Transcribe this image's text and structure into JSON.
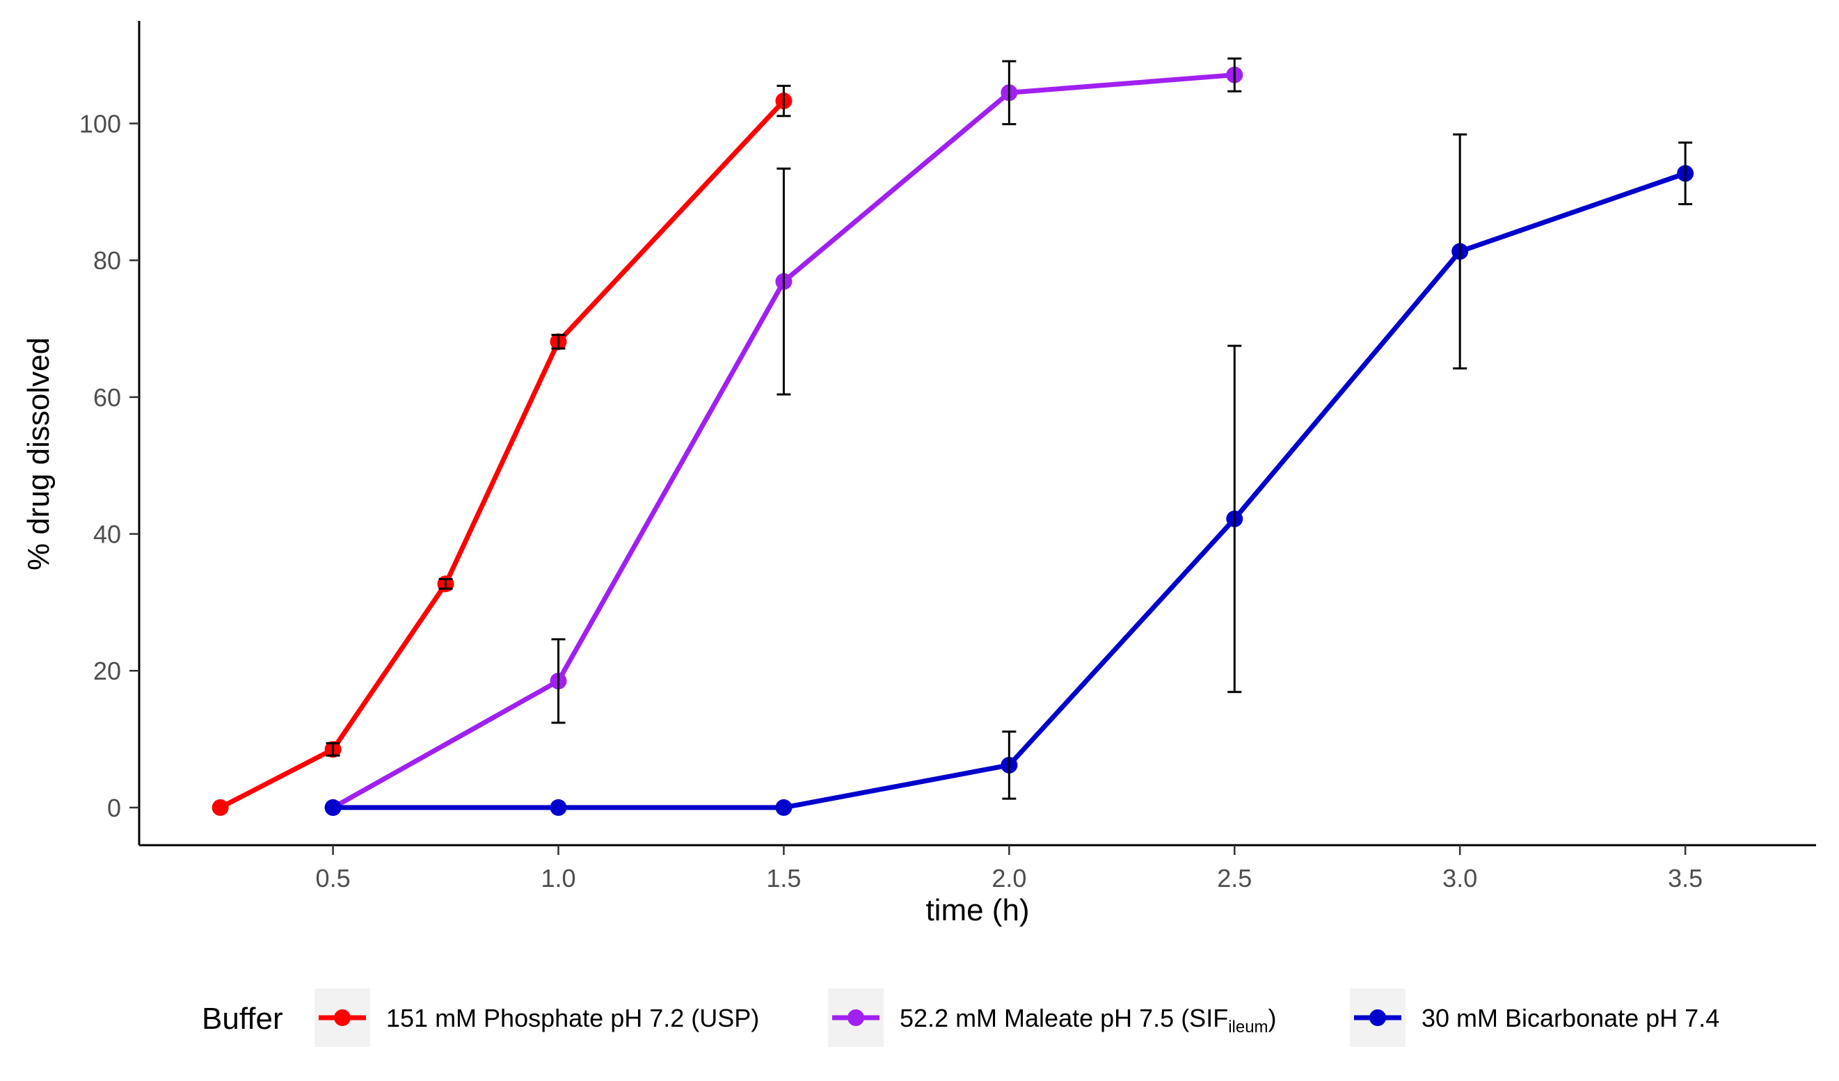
{
  "chart_data": {
    "type": "line",
    "title": "",
    "xlabel": "time (h)",
    "ylabel": "% drug dissolved",
    "xlim": [
      0.07,
      3.79
    ],
    "ylim": [
      -5.5,
      115
    ],
    "xticks": [
      0.5,
      1.0,
      1.5,
      2.0,
      2.5,
      3.0,
      3.5
    ],
    "xtick_labels": [
      "0.5",
      "1.0",
      "1.5",
      "2.0",
      "2.5",
      "3.0",
      "3.5"
    ],
    "yticks": [
      0,
      20,
      40,
      60,
      80,
      100
    ],
    "ytick_labels": [
      "0",
      "20",
      "40",
      "60",
      "80",
      "100"
    ],
    "grid": false,
    "legend": {
      "title": "Buffer",
      "position": "bottom"
    },
    "series": [
      {
        "name": "151 mM Phosphate pH 7.2 (USP)",
        "color": "#ff0000",
        "x": [
          0.25,
          0.5,
          0.75,
          1.0,
          1.5
        ],
        "y": [
          0.0,
          8.5,
          32.7,
          68.1,
          103.3
        ],
        "err": [
          0.0,
          0.9,
          0.7,
          1.0,
          2.2
        ]
      },
      {
        "name": "52.2 mM Maleate pH 7.5 (SIF",
        "name_sub": "ileum",
        "name_suffix": ")",
        "color": "#a020f0",
        "x": [
          0.5,
          1.0,
          1.5,
          2.0,
          2.5
        ],
        "y": [
          0.0,
          18.5,
          76.9,
          104.5,
          107.1
        ],
        "err": [
          0.0,
          6.1,
          16.5,
          4.6,
          2.4
        ]
      },
      {
        "name": "30 mM Bicarbonate pH 7.4",
        "color": "#0000cd",
        "x": [
          0.5,
          1.0,
          1.5,
          2.0,
          2.5,
          3.0,
          3.5
        ],
        "y": [
          0.0,
          0.0,
          0.0,
          6.2,
          42.2,
          81.3,
          92.7
        ],
        "err": [
          0.0,
          0.0,
          0.0,
          4.9,
          25.3,
          17.1,
          4.5
        ]
      }
    ]
  }
}
